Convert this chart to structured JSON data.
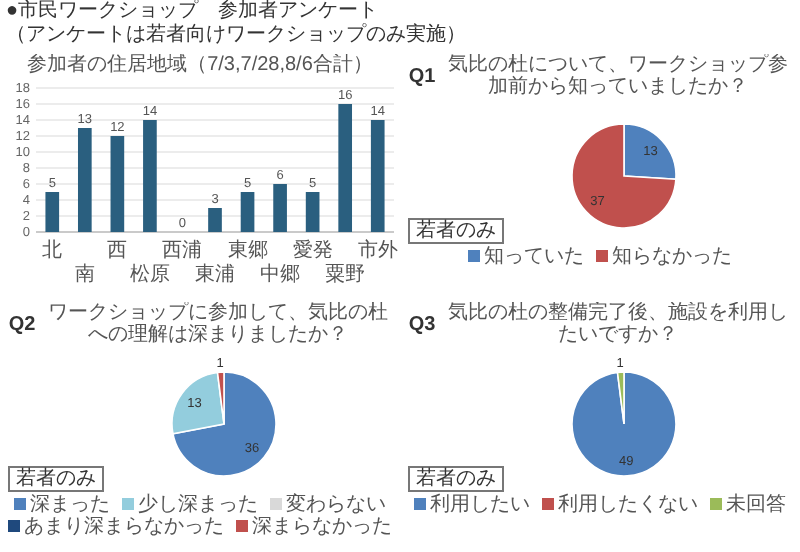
{
  "chart_data": [
    {
      "type": "bar",
      "title": "参加者の住居地域（7/3,7/28,8/6合計）",
      "annotations": [
        "●市民ワークショップ　参加者アンケート",
        "（アンケートは若者向けワークショップのみ実施）"
      ],
      "categories": [
        "北",
        "南",
        "西",
        "松原",
        "西浦",
        "東浦",
        "東郷",
        "中郷",
        "愛発",
        "粟野",
        "市外"
      ],
      "values": [
        5,
        13,
        12,
        14,
        0,
        3,
        5,
        6,
        5,
        16,
        14
      ],
      "color": "#2a5f7f",
      "ylim": [
        0,
        18
      ],
      "yticks": [
        0,
        2,
        4,
        6,
        8,
        10,
        12,
        14,
        16,
        18
      ],
      "grid": "y",
      "data_labels": true
    },
    {
      "type": "pie",
      "title": "気比の杜について、ワークショップ参加前から知っていましたか？",
      "annotations": [
        "Q1",
        "若者のみ"
      ],
      "categories": [
        "知っていた",
        "知らなかった"
      ],
      "values": [
        13,
        37
      ],
      "colors": [
        "#4f81bd",
        "#c0504d"
      ],
      "data_labels": true,
      "legend": "bottom"
    },
    {
      "type": "pie",
      "title": "ワークショップに参加して、気比の杜への理解は深まりましたか？",
      "annotations": [
        "Q2",
        "若者のみ"
      ],
      "categories": [
        "深まった",
        "少し深まった",
        "変わらない",
        "あまり深まらなかった",
        "深まらなかった"
      ],
      "values": [
        36,
        13,
        0,
        0,
        1
      ],
      "colors": [
        "#4f81bd",
        "#93cddd",
        "#d9d9d9",
        "#1f497d",
        "#c0504d"
      ],
      "data_labels": true,
      "legend": "bottom"
    },
    {
      "type": "pie",
      "title": "気比の杜の整備完了後、施設を利用したいですか？",
      "annotations": [
        "Q3",
        "若者のみ"
      ],
      "categories": [
        "利用したい",
        "利用したくない",
        "未回答"
      ],
      "values": [
        49,
        0,
        1
      ],
      "colors": [
        "#4f81bd",
        "#c0504d",
        "#9bbb59"
      ],
      "data_labels": true,
      "legend": "bottom"
    }
  ]
}
